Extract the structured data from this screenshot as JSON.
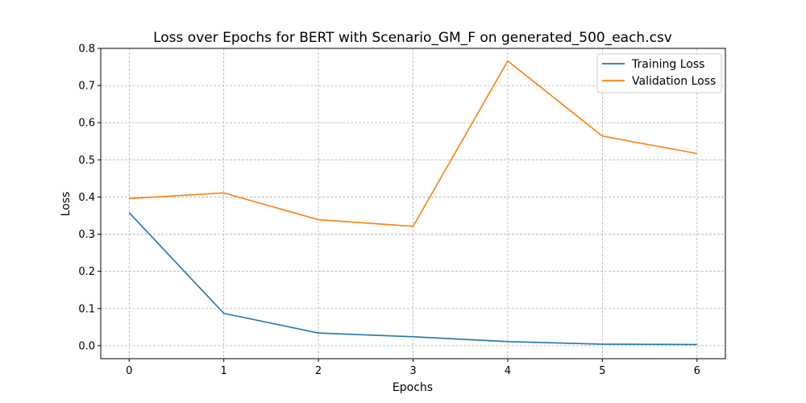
{
  "chart_data": {
    "type": "line",
    "title": "Loss over Epochs for BERT with Scenario_GM_F on generated_500_each.csv",
    "xlabel": "Epochs",
    "ylabel": "Loss",
    "x": [
      0,
      1,
      2,
      3,
      4,
      5,
      6
    ],
    "xlim": [
      -0.3,
      6.3
    ],
    "ylim": [
      -0.035,
      0.8
    ],
    "x_ticks": [
      "0",
      "1",
      "2",
      "3",
      "4",
      "5",
      "6"
    ],
    "y_ticks": [
      "0.0",
      "0.1",
      "0.2",
      "0.3",
      "0.4",
      "0.5",
      "0.6",
      "0.7",
      "0.8"
    ],
    "grid": true,
    "legend_position": "top-right",
    "series": [
      {
        "name": "Training Loss",
        "color": "#1f77b4",
        "values": [
          0.358,
          0.087,
          0.034,
          0.024,
          0.011,
          0.004,
          0.003
        ]
      },
      {
        "name": "Validation Loss",
        "color": "#ff7f0e",
        "values": [
          0.396,
          0.411,
          0.339,
          0.321,
          0.766,
          0.564,
          0.517
        ]
      }
    ]
  }
}
